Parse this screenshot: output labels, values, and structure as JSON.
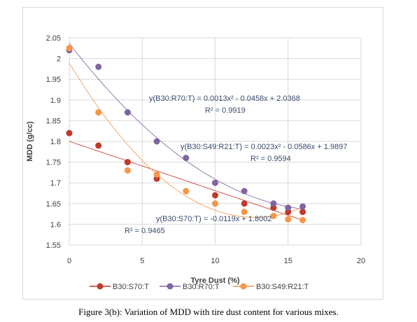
{
  "chart_data": {
    "type": "scatter",
    "xlabel": "Tyre Dust (%)",
    "ylabel": "MDD (g/cc)",
    "xlim": [
      0,
      20
    ],
    "ylim": [
      1.55,
      2.05
    ],
    "x_ticks": [
      "0",
      "5",
      "10",
      "15",
      "20"
    ],
    "y_ticks": [
      "1.55",
      "1.6",
      "1.65",
      "1.7",
      "1.75",
      "1.8",
      "1.85",
      "1.9",
      "1.95",
      "2",
      "2.05"
    ],
    "grid": true,
    "legend_position": "bottom",
    "series": [
      {
        "name": "B30:S70:T",
        "color": "#c0392b",
        "x": [
          0,
          2,
          4,
          6,
          10,
          12,
          14,
          15,
          16
        ],
        "y": [
          1.82,
          1.79,
          1.75,
          1.71,
          1.67,
          1.65,
          1.64,
          1.63,
          1.63
        ],
        "trendline": "linear",
        "equation": "y(B30:S70:T) = -0.0119x + 1.8002",
        "r2": "R² = 0.9465"
      },
      {
        "name": "B30:R70:T",
        "color": "#8064a2",
        "x": [
          0,
          2,
          4,
          6,
          8,
          10,
          12,
          14,
          15,
          16
        ],
        "y": [
          2.02,
          1.98,
          1.87,
          1.8,
          1.76,
          1.7,
          1.68,
          1.65,
          1.64,
          1.643
        ],
        "trendline": "poly2",
        "equation": "y(B30:R70:T) = 0.0013x² - 0.0458x + 2.0368",
        "r2": "R² = 0.9919"
      },
      {
        "name": "B30:S49:R21:T",
        "color": "#f79646",
        "x": [
          0,
          2,
          4,
          6,
          8,
          10,
          12,
          14,
          15,
          16
        ],
        "y": [
          2.025,
          1.87,
          1.73,
          1.72,
          1.68,
          1.65,
          1.63,
          1.62,
          1.612,
          1.61
        ],
        "trendline": "poly2",
        "equation": "y(B30:S49:R21:T) = 0.0023x² - 0.0586x + 1.9897",
        "r2": "R² = 0.9594"
      }
    ]
  },
  "caption": "Figure 3(b): Variation of MDD with tire dust content for various mixes."
}
